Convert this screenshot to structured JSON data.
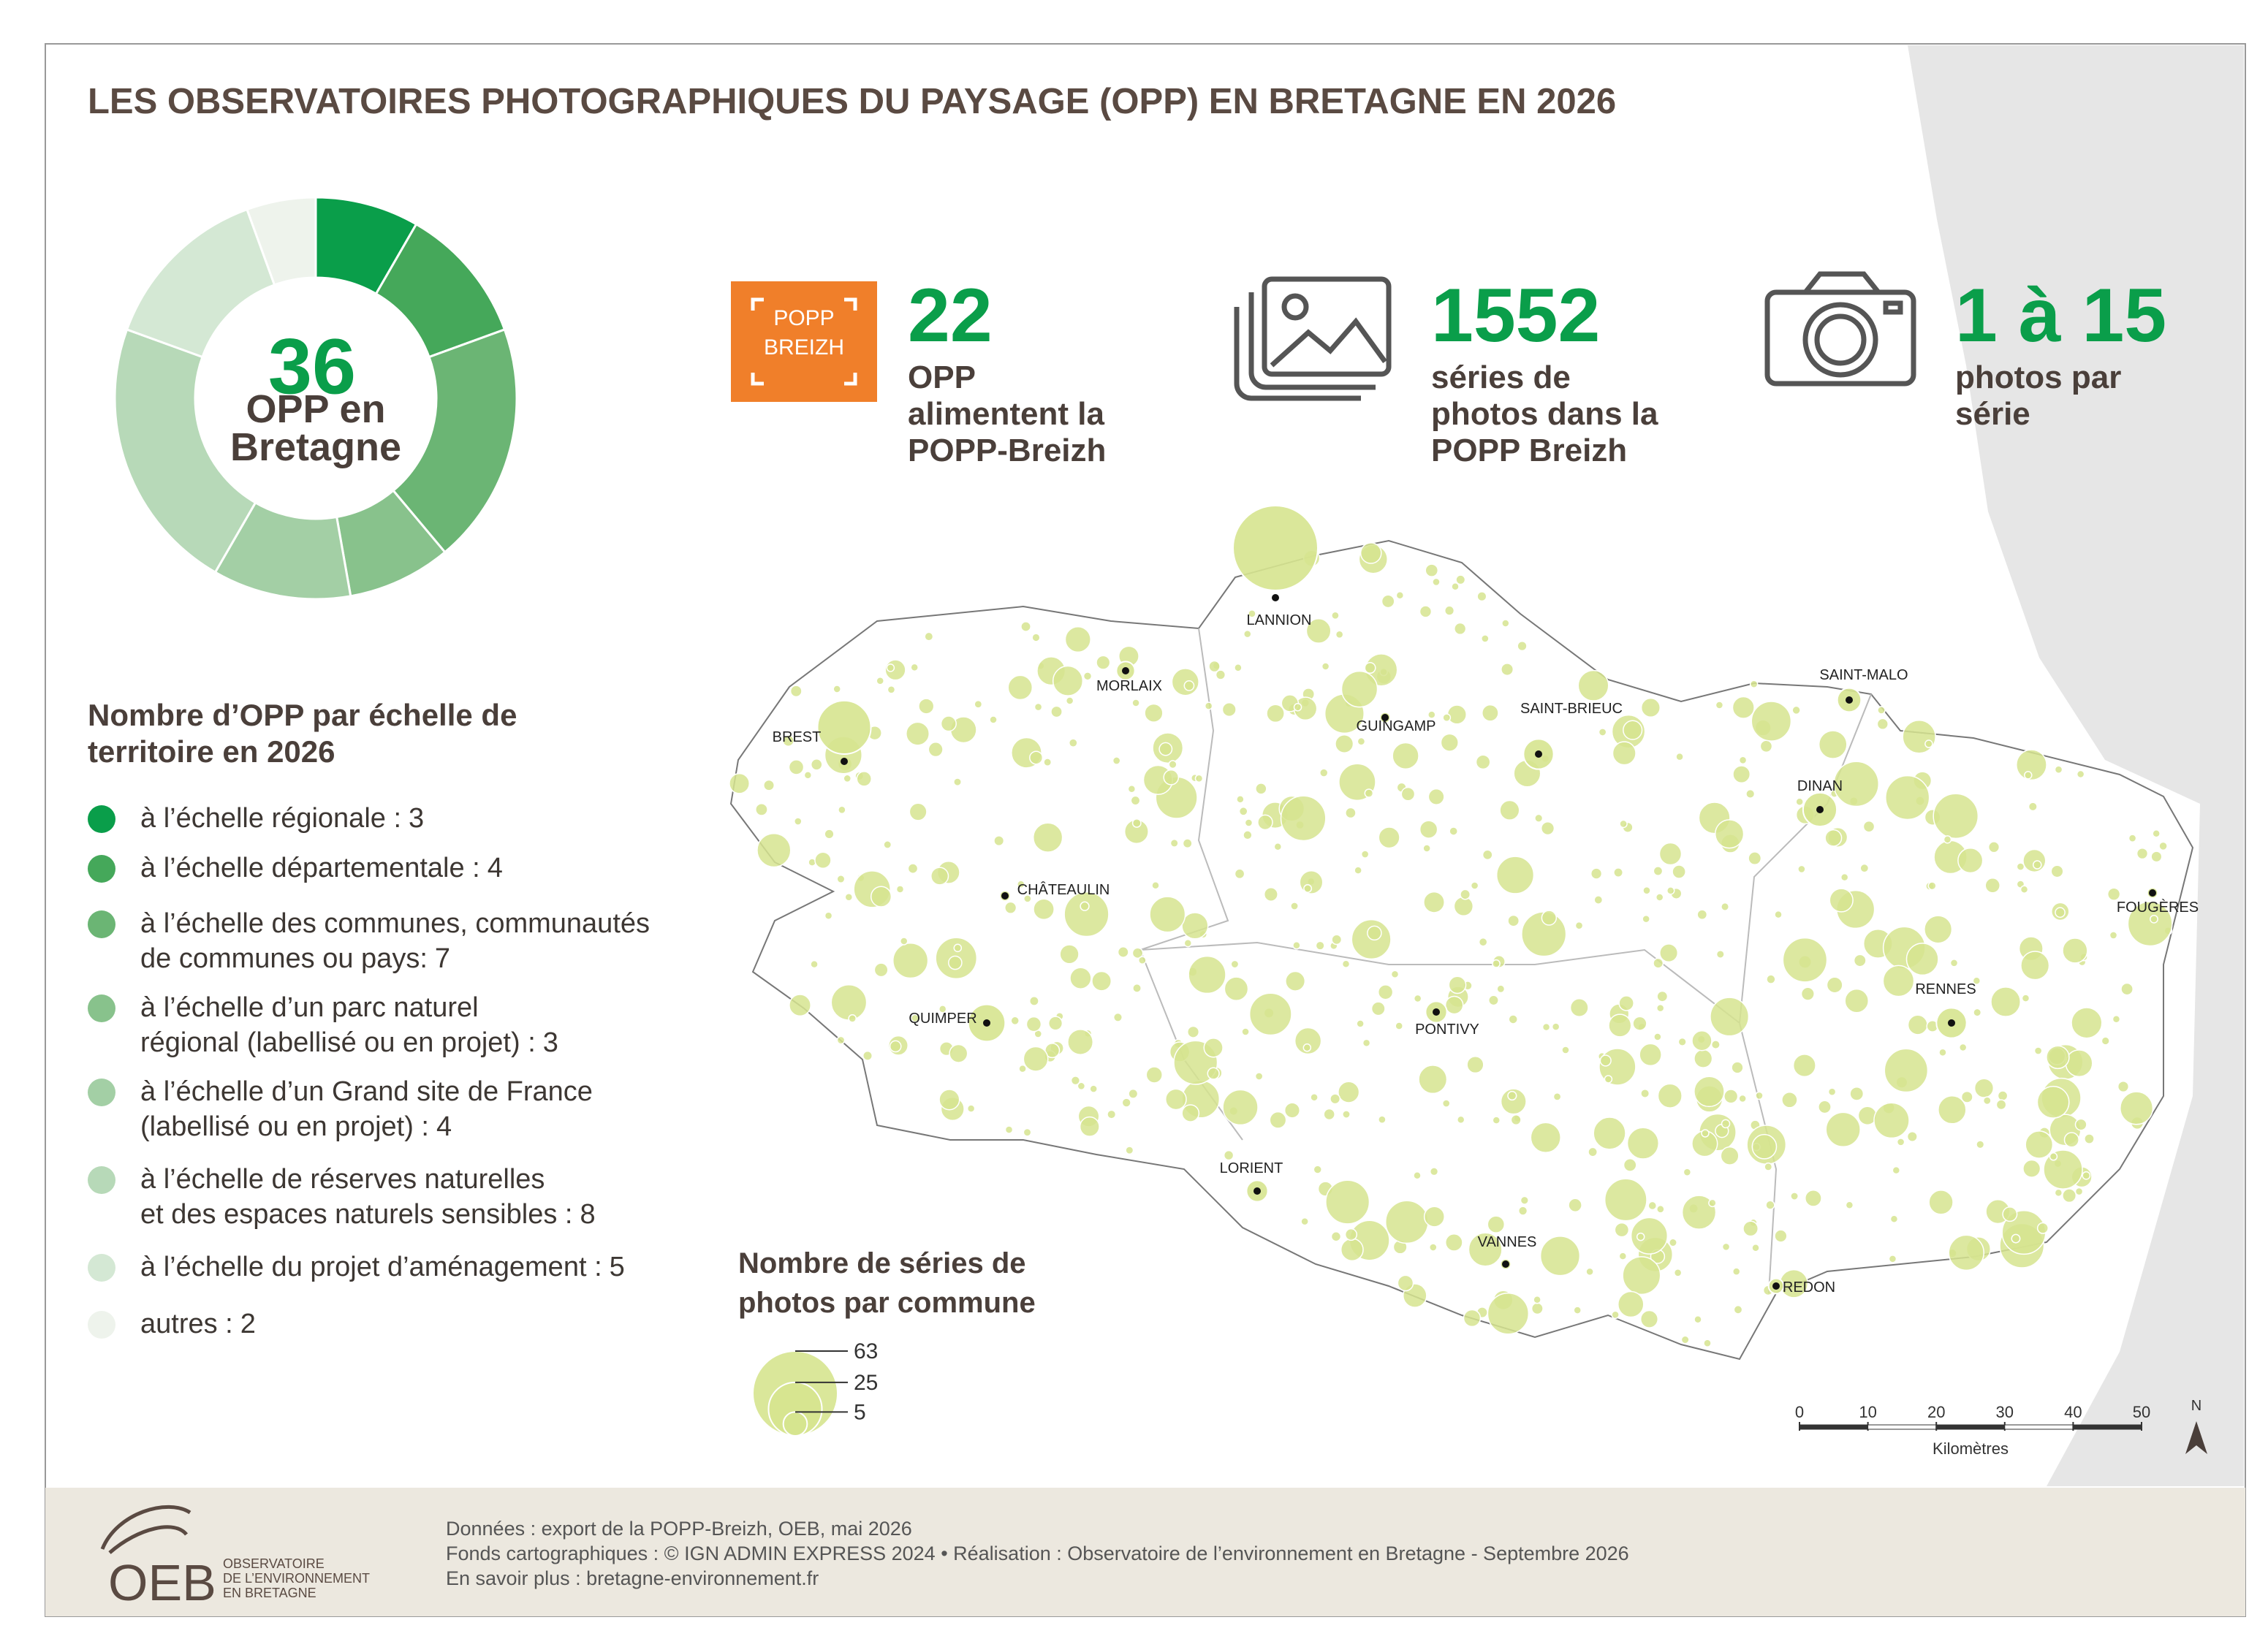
{
  "title": "LES OBSERVATOIRES PHOTOGRAPHIQUES DU PAYSAGE (OPP) EN BRETAGNE EN 2026",
  "chart_data": {
    "type": "donut",
    "total": 36,
    "center_lines": [
      "OPP en",
      "Bretagne"
    ],
    "legend_title": [
      "Nombre d’OPP par échelle de",
      "territoire en 2026"
    ],
    "categories": [
      [
        "à l’échelle régionale :"
      ],
      [
        "à l’échelle départementale :"
      ],
      [
        "à l’échelle des communes, communautés",
        "de communes ou pays:"
      ],
      [
        "à l’échelle d’un parc naturel",
        "régional (labellisé ou en projet) :"
      ],
      [
        "à l’échelle d’un Grand site de France",
        "(labellisé ou en projet) :"
      ],
      [
        "à l’échelle de réserves naturelles",
        "et des espaces naturels sensibles :"
      ],
      [
        "à l’échelle du projet d’aménagement :"
      ],
      [
        "autres :"
      ]
    ],
    "values": [
      3,
      4,
      7,
      3,
      4,
      8,
      5,
      2
    ],
    "colors": [
      "#0a9e4a",
      "#45a85a",
      "#6bb574",
      "#88c28c",
      "#a3cfa5",
      "#b7d9b8",
      "#d4e8d4",
      "#eef3ec"
    ]
  },
  "logo_popp": [
    "POPP",
    "BREIZH"
  ],
  "stats": [
    {
      "value": 22,
      "lines": [
        "OPP",
        "alimentent la",
        "POPP-Breizh"
      ]
    },
    {
      "value": 1552,
      "lines": [
        "séries de",
        "photos dans la",
        "POPP Breizh"
      ]
    },
    {
      "value": "1 à 15",
      "lines": [
        "photos par",
        "série"
      ]
    }
  ],
  "map": {
    "cities": [
      {
        "name": "LANNION",
        "series": 63
      },
      {
        "name": "MORLAIX",
        "series": 3
      },
      {
        "name": "BREST",
        "series": 25
      },
      {
        "name": "GUINGAMP",
        "series": 1
      },
      {
        "name": "SAINT-BRIEUC",
        "series": 8
      },
      {
        "name": "SAINT-MALO",
        "series": 5
      },
      {
        "name": "DINAN",
        "series": 10
      },
      {
        "name": "CHÂTEAULIN",
        "series": 1
      },
      {
        "name": "FOUGÈRES",
        "series": 1
      },
      {
        "name": "RENNES",
        "series": 8
      },
      {
        "name": "QUIMPER",
        "series": 12
      },
      {
        "name": "PONTIVY",
        "series": 4
      },
      {
        "name": "LORIENT",
        "series": 4
      },
      {
        "name": "VANNES",
        "series": 1
      },
      {
        "name": "REDON",
        "series": 2
      }
    ],
    "size_legend_title": [
      "Nombre de séries de",
      "photos par commune"
    ],
    "size_legend": [
      63,
      25,
      5
    ],
    "scale_ticks": [
      0,
      10,
      20,
      30,
      40,
      50
    ],
    "scale_unit": "Kilomètres",
    "north": "N"
  },
  "footer": {
    "lines": [
      "Données : export de la POPP-Breizh, OEB, mai 2026",
      "Fonds cartographiques : © IGN ADMIN EXPRESS 2024 • Réalisation : Observatoire de l’environnement en Bretagne - Septembre 2026",
      "En savoir plus : bretagne-environnement.fr"
    ],
    "logo": "OEB",
    "logo_lines": [
      "OBSERVATOIRE",
      "DE L’ENVIRONNEMENT",
      "EN BRETAGNE"
    ]
  }
}
